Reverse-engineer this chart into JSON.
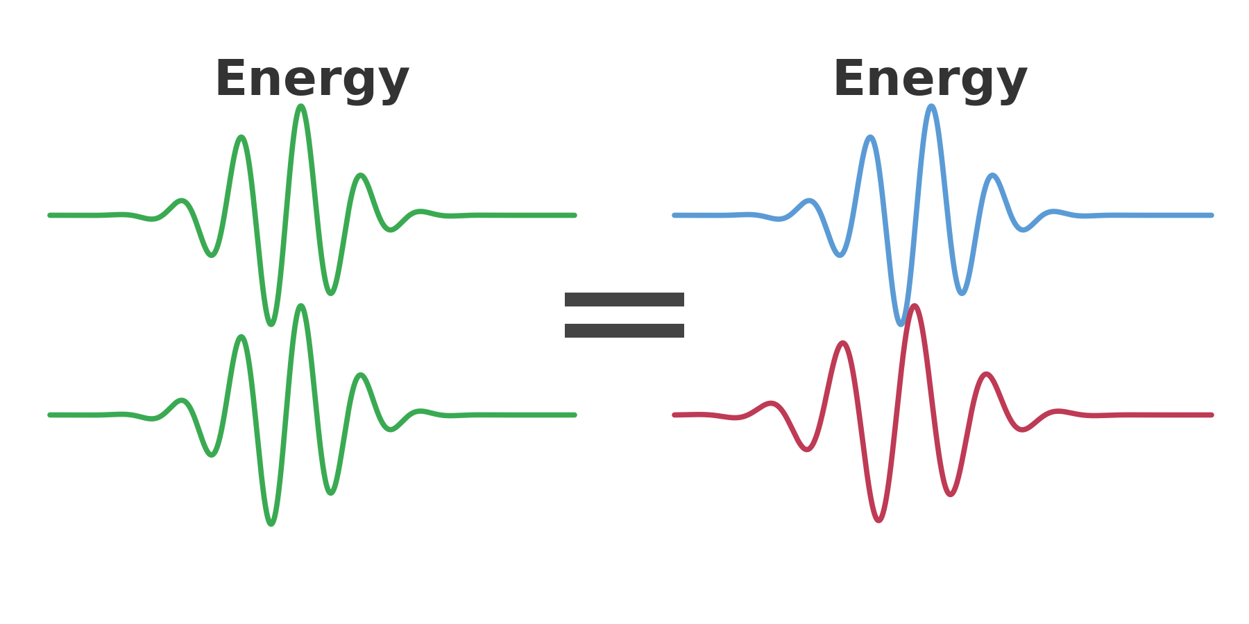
{
  "background_color": "#ffffff",
  "title_left": "Energy",
  "title_right": "Energy",
  "title_fontsize": 52,
  "title_fontweight": "bold",
  "title_color": "#333333",
  "green_color": "#3aaa52",
  "blue_color": "#5b9bd5",
  "red_color": "#be3a55",
  "equals_color": "#444444",
  "line_width": 5.5,
  "wave_n_points": 3000
}
